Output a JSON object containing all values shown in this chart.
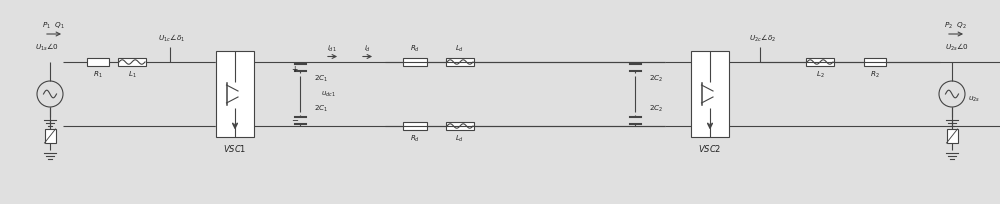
{
  "bg_color": "#e0e0e0",
  "line_color": "#444444",
  "text_color": "#222222",
  "fig_width": 10.0,
  "fig_height": 2.04,
  "dpi": 100
}
